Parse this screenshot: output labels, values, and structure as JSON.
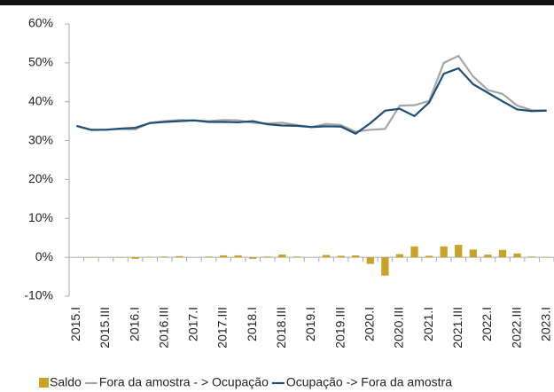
{
  "chart_data": {
    "type": "combo",
    "categories": [
      "2015.I",
      null,
      "2015.III",
      null,
      "2016.I",
      null,
      "2016.III",
      null,
      "2017.I",
      null,
      "2017.III",
      null,
      "2018.I",
      null,
      "2018.III",
      null,
      "2019.I",
      null,
      "2019.III",
      null,
      "2020.I",
      null,
      "2020.III",
      null,
      "2021.I",
      null,
      "2021.III",
      null,
      "2022.I",
      null,
      "2022.III",
      null,
      "2023.I"
    ],
    "series": [
      {
        "name": "Saldo",
        "type": "bar",
        "color": "#c9a227",
        "values": [
          0,
          -0.1,
          0,
          -0.1,
          -0.4,
          0.1,
          0.2,
          0.3,
          0,
          0.2,
          0.5,
          0.5,
          -0.4,
          0.2,
          0.7,
          0.2,
          0,
          0.6,
          0.4,
          0.5,
          -1.7,
          -4.7,
          0.8,
          2.8,
          0.4,
          2.8,
          3.2,
          2.0,
          0.7,
          1.9,
          1.0,
          0.2,
          0.1
        ]
      },
      {
        "name": "Fora da amostra - > Ocupação",
        "type": "line",
        "color": "#a6a6a6",
        "values": [
          33.8,
          32.7,
          32.8,
          33.0,
          32.9,
          34.6,
          35.0,
          35.3,
          35.2,
          35.0,
          35.3,
          35.2,
          34.6,
          34.4,
          34.6,
          34.0,
          33.5,
          34.3,
          34.0,
          32.3,
          32.8,
          33.0,
          39.0,
          39.1,
          40.2,
          50.0,
          51.8,
          46.5,
          43.0,
          42.0,
          39.0,
          37.8,
          37.8
        ]
      },
      {
        "name": "Ocupação -> Fora da amostra",
        "type": "line",
        "color": "#1f4e79",
        "values": [
          33.8,
          32.8,
          32.8,
          33.1,
          33.3,
          34.5,
          34.8,
          35.0,
          35.2,
          34.8,
          34.8,
          34.7,
          35.0,
          34.2,
          33.9,
          33.8,
          33.5,
          33.7,
          33.6,
          31.8,
          34.5,
          37.7,
          38.2,
          36.3,
          39.8,
          47.2,
          48.6,
          44.5,
          42.3,
          40.1,
          38.0,
          37.6,
          37.7
        ]
      }
    ],
    "ylim": [
      -10,
      60
    ],
    "yticks": [
      {
        "value": -10,
        "label": "-10%"
      },
      {
        "value": 0,
        "label": "0%"
      },
      {
        "value": 10,
        "label": "10%"
      },
      {
        "value": 20,
        "label": "20%"
      },
      {
        "value": 30,
        "label": "30%"
      },
      {
        "value": 40,
        "label": "40%"
      },
      {
        "value": 50,
        "label": "50%"
      },
      {
        "value": 60,
        "label": "60%"
      }
    ],
    "grid": false
  }
}
